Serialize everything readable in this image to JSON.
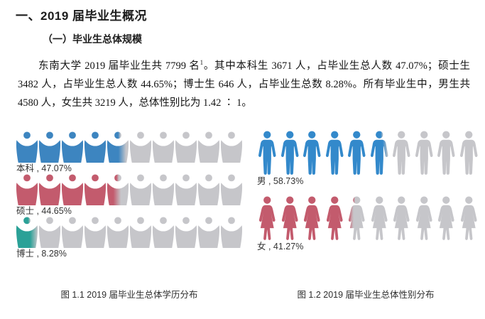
{
  "page": {
    "title": "一、2019 届毕业生概况",
    "section_title": "（一）毕业生总体规模",
    "paragraph": {
      "part1": "东南大学 2019 届毕业生共 7799 名",
      "footnote_marker": "1",
      "part2": "。其中本科生 3671 人，占毕业生总人数 47.07%；硕士生 3482 人，占毕业生总人数 44.65%；博士生 646 人，占毕业生总数 8.28%。所有毕业生中，男生共 4580 人，女生共 3219 人，总体性别比为 1.42 ∶ 1。"
    }
  },
  "chart_data": [
    {
      "type": "pictograph",
      "caption": "图 1.1 2019 届毕业生总体学历分布",
      "icons_per_row": 10,
      "icon": "person-arms-out-icon",
      "empty_color": "#c6c6ca",
      "series": [
        {
          "label": "本科",
          "value": 47.07,
          "label_text": "本科 , 47.07%",
          "color": "#3d85c0"
        },
        {
          "label": "硕士",
          "value": 44.65,
          "label_text": "硕士 , 44.65%",
          "color": "#c35b6d"
        },
        {
          "label": "博士",
          "value": 8.28,
          "label_text": "博士 , 8.28%",
          "color": "#2ba197"
        }
      ]
    },
    {
      "type": "pictograph",
      "caption": "图 1.2  2019 届毕业生总体性别分布",
      "icons_per_row": 10,
      "empty_color": "#c6c6ca",
      "series": [
        {
          "label": "男",
          "value": 58.73,
          "label_text": "男 , 58.73%",
          "color": "#3389cb",
          "icon": "male-person-icon"
        },
        {
          "label": "女",
          "value": 41.27,
          "label_text": "女 , 41.27%",
          "color": "#c35b6d",
          "icon": "female-person-icon"
        }
      ]
    }
  ]
}
